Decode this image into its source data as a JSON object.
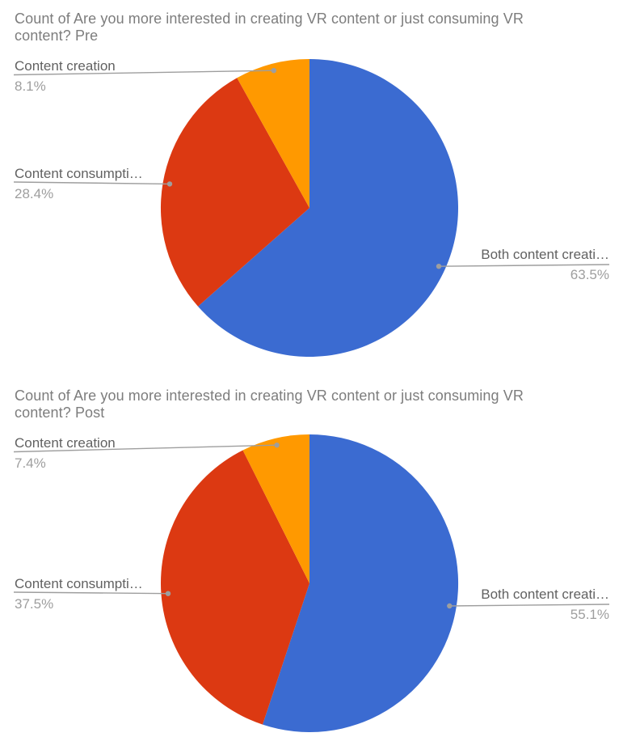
{
  "palette": {
    "blue": "#3B6BD1",
    "red": "#DC3912",
    "orange": "#FF9900",
    "leader_line": "#9E9E9E",
    "title_color": "#7D7D7D",
    "label_color": "#616161",
    "percent_color": "#9E9E9E",
    "background": "#FFFFFF"
  },
  "chart_data": [
    {
      "type": "pie",
      "title": "Count of Are you more interested in creating VR content or just consuming VR content? Pre",
      "title_lines": [
        "Count of Are you more interested in creating VR content or just consuming VR",
        "content? Pre"
      ],
      "start_angle_deg": 0,
      "direction": "clockwise",
      "legend": "outside-callouts",
      "grid": false,
      "slices": [
        {
          "label": "Both content creati…",
          "pct": 63.5,
          "pct_display": "63.5%",
          "color": "#3B6BD1",
          "label_side": "right"
        },
        {
          "label": "Content consumpti…",
          "pct": 28.4,
          "pct_display": "28.4%",
          "color": "#DC3912",
          "label_side": "left"
        },
        {
          "label": "Content creation",
          "pct": 8.1,
          "pct_display": "8.1%",
          "color": "#FF9900",
          "label_side": "topleft"
        }
      ]
    },
    {
      "type": "pie",
      "title": "Count of Are you more interested in creating VR content or just consuming VR content? Post",
      "title_lines": [
        "Count of Are you more interested in creating VR content or just consuming VR",
        "content? Post"
      ],
      "start_angle_deg": 0,
      "direction": "clockwise",
      "legend": "outside-callouts",
      "grid": false,
      "slices": [
        {
          "label": "Both content creati…",
          "pct": 55.1,
          "pct_display": "55.1%",
          "color": "#3B6BD1",
          "label_side": "right"
        },
        {
          "label": "Content consumpti…",
          "pct": 37.5,
          "pct_display": "37.5%",
          "color": "#DC3912",
          "label_side": "left"
        },
        {
          "label": "Content creation",
          "pct": 7.4,
          "pct_display": "7.4%",
          "color": "#FF9900",
          "label_side": "topleft"
        }
      ]
    }
  ]
}
